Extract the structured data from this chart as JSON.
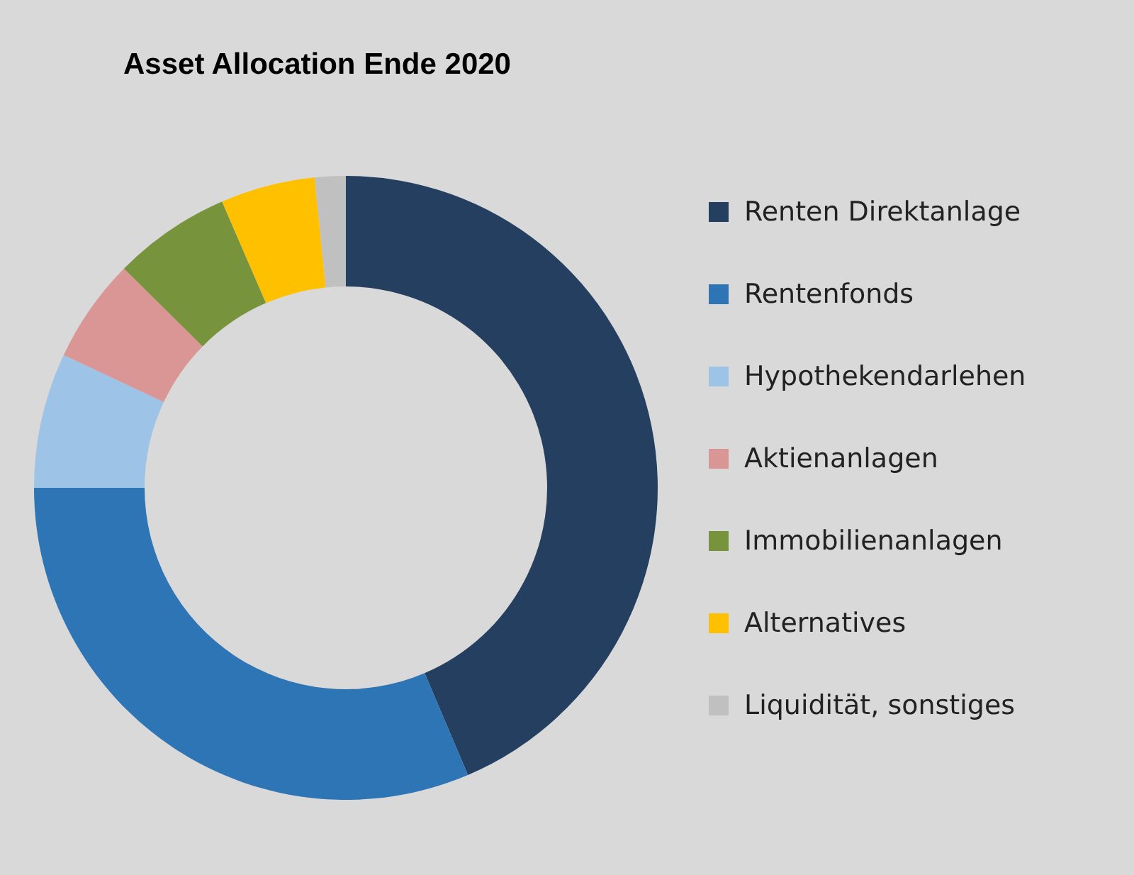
{
  "chart_data": {
    "type": "donut",
    "title": "Asset Allocation Ende 2020",
    "categories": [
      "Renten Direktanlage",
      "Rentenfonds",
      "Hypothekendarlehen",
      "Aktienanlagen",
      "Immobilienanlagen",
      "Alternatives",
      "Liquidität, sonstiges"
    ],
    "values": [
      43.6,
      31.4,
      7.0,
      5.4,
      6.1,
      4.9,
      1.6
    ],
    "colors": [
      "#243f60",
      "#2e75b6",
      "#9dc3e6",
      "#da9694",
      "#77933c",
      "#ffc000",
      "#c0c0c0"
    ],
    "legend": "right"
  }
}
